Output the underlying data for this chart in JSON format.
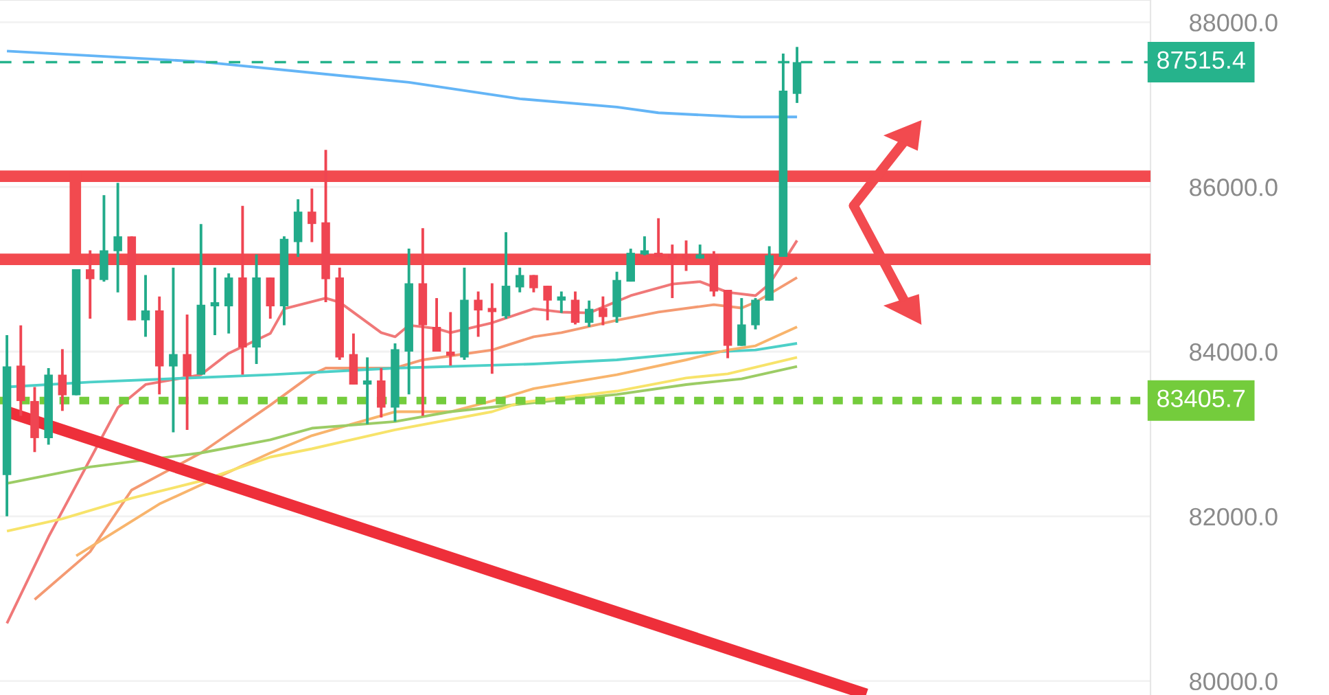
{
  "chart_data": {
    "type": "candlestick",
    "categories": [
      null,
      null,
      null,
      null,
      null,
      null,
      null,
      null,
      null,
      null,
      null,
      null,
      null,
      null,
      null,
      null,
      null,
      null,
      null,
      null,
      null,
      null,
      null,
      null,
      null,
      null,
      null,
      null,
      null,
      null,
      null,
      null,
      null,
      null,
      null,
      null,
      null,
      null,
      null,
      null,
      null,
      null,
      null,
      null,
      null,
      null,
      null,
      null,
      null,
      null,
      null,
      null,
      null,
      null,
      null,
      null,
      null,
      null,
      null,
      null,
      null,
      null,
      null,
      null,
      null,
      null,
      null,
      null,
      null,
      null,
      null,
      null,
      null,
      null,
      null,
      null,
      null,
      null,
      null,
      null,
      null,
      null,
      null
    ],
    "ohlc": [
      [
        82500,
        84200,
        82000,
        83820
      ],
      [
        83830,
        84320,
        83220,
        83400
      ],
      [
        83400,
        83570,
        82780,
        82950
      ],
      [
        82950,
        83800,
        82870,
        83720
      ],
      [
        83720,
        84030,
        83280,
        83470
      ],
      [
        83470,
        85000,
        83470,
        85000
      ],
      [
        85000,
        85230,
        84400,
        84880
      ],
      [
        84870,
        85900,
        84850,
        85230
      ],
      [
        85220,
        86050,
        84720,
        85400
      ],
      [
        85400,
        85400,
        84380,
        84380
      ],
      [
        84380,
        84930,
        84180,
        84500
      ],
      [
        84500,
        84670,
        83480,
        83820
      ],
      [
        83820,
        85020,
        83020,
        83970
      ],
      [
        83970,
        84450,
        83050,
        83700
      ],
      [
        83720,
        85550,
        83720,
        84570
      ],
      [
        84550,
        85020,
        84200,
        84600
      ],
      [
        84550,
        84950,
        84220,
        84900
      ],
      [
        84900,
        85770,
        83720,
        84050
      ],
      [
        84050,
        85180,
        83850,
        84900
      ],
      [
        84900,
        84900,
        84400,
        84550
      ],
      [
        84550,
        85400,
        84320,
        85370
      ],
      [
        85330,
        85850,
        85150,
        85700
      ],
      [
        85700,
        85980,
        85330,
        85550
      ],
      [
        85570,
        86450,
        84600,
        84880
      ],
      [
        84900,
        85020,
        83900,
        83930
      ],
      [
        83970,
        84220,
        83600,
        83600
      ],
      [
        83600,
        83930,
        83120,
        83650
      ],
      [
        83650,
        83800,
        83200,
        83320
      ],
      [
        83320,
        84100,
        83150,
        84030
      ],
      [
        84000,
        85250,
        83480,
        84830
      ],
      [
        84830,
        85500,
        83220,
        84320
      ],
      [
        84300,
        84650,
        84000,
        84000
      ],
      [
        84000,
        84480,
        83830,
        83950
      ],
      [
        83930,
        85020,
        83900,
        84630
      ],
      [
        84630,
        84730,
        84180,
        84500
      ],
      [
        84530,
        84830,
        83730,
        84480
      ],
      [
        84430,
        85450,
        84400,
        84800
      ],
      [
        84780,
        85020,
        84720,
        84930
      ],
      [
        84930,
        84930,
        84720,
        84770
      ],
      [
        84800,
        84800,
        84380,
        84620
      ],
      [
        84620,
        84730,
        84470,
        84670
      ],
      [
        84630,
        84730,
        84330,
        84350
      ],
      [
        84350,
        84620,
        84300,
        84520
      ],
      [
        84530,
        84670,
        84320,
        84420
      ],
      [
        84420,
        84970,
        84350,
        84870
      ],
      [
        84850,
        85250,
        84850,
        85200
      ],
      [
        85180,
        85400,
        85170,
        85230
      ],
      [
        85200,
        85620,
        85150,
        85150
      ],
      [
        85180,
        85300,
        84650,
        85130
      ],
      [
        85180,
        85350,
        84980,
        85130
      ],
      [
        85130,
        85300,
        85130,
        85180
      ],
      [
        85170,
        85220,
        84670,
        84730
      ],
      [
        84750,
        84750,
        83920,
        84070
      ],
      [
        84070,
        84650,
        84070,
        84330
      ],
      [
        84320,
        84650,
        84270,
        84630
      ],
      [
        84620,
        85280,
        84620,
        85170
      ],
      [
        85150,
        87620,
        85150,
        87170
      ],
      [
        87130,
        87700,
        87020,
        87515.4
      ],
      null,
      null,
      null,
      null,
      null,
      null,
      null,
      null,
      null,
      null,
      null,
      null,
      null,
      null,
      null,
      null,
      null,
      null,
      null,
      null,
      null,
      null,
      null,
      null,
      null
    ],
    "colors": [
      "#22ab8a",
      "#ef4552",
      "#ef4552",
      "#22ab8a",
      "#ef4552",
      "#22ab8a",
      "#ef4552",
      "#22ab8a",
      "#22ab8a",
      "#ef4552",
      "#22ab8a",
      "#ef4552",
      "#22ab8a",
      "#ef4552",
      "#22ab8a",
      "#22ab8a",
      "#22ab8a",
      "#ef4552",
      "#22ab8a",
      "#ef4552",
      "#22ab8a",
      "#22ab8a",
      "#ef4552",
      "#ef4552",
      "#ef4552",
      "#ef4552",
      "#22ab8a",
      "#ef4552",
      "#22ab8a",
      "#22ab8a",
      "#ef4552",
      "#ef4552",
      "#ef4552",
      "#22ab8a",
      "#ef4552",
      "#ef4552",
      "#22ab8a",
      "#22ab8a",
      "#ef4552",
      "#ef4552",
      "#22ab8a",
      "#ef4552",
      "#22ab8a",
      "#ef4552",
      "#22ab8a",
      "#22ab8a",
      "#22ab8a",
      "#ef4552",
      "#ef4552",
      "#ef4552",
      "#22ab8a",
      "#ef4552",
      "#ef4552",
      "#22ab8a",
      "#22ab8a",
      "#22ab8a",
      "#22ab8a",
      "#22ab8a",
      null,
      null,
      null,
      null,
      null,
      null,
      null,
      null,
      null,
      null,
      null,
      null,
      null,
      null,
      null,
      null,
      null,
      null,
      null,
      null,
      null,
      null,
      null,
      null,
      null
    ],
    "series": [
      {
        "type": "line",
        "color": "#64b5f6",
        "values": [
          87650,
          null,
          null,
          null,
          null,
          null,
          null,
          null,
          null,
          null,
          null,
          null,
          null,
          null,
          87520,
          null,
          null,
          null,
          null,
          null,
          null,
          null,
          null,
          null,
          null,
          null,
          null,
          null,
          null,
          87270,
          null,
          null,
          null,
          null,
          null,
          null,
          null,
          87070,
          null,
          null,
          null,
          null,
          null,
          null,
          86970,
          null,
          null,
          86900,
          null,
          null,
          null,
          null,
          null,
          86850,
          null,
          null,
          null,
          86850,
          null,
          null,
          null,
          null,
          null,
          null,
          null,
          null,
          null,
          null,
          null,
          null,
          null,
          null,
          null,
          null,
          null,
          null,
          null,
          null,
          null,
          null,
          null,
          null,
          null
        ]
      },
      {
        "type": "line",
        "color": "#f07878",
        "values": [
          80700,
          null,
          null,
          81750,
          null,
          null,
          null,
          null,
          83320,
          null,
          83600,
          null,
          null,
          null,
          83720,
          null,
          83980,
          null,
          null,
          84220,
          84520,
          null,
          null,
          84650,
          84600,
          null,
          null,
          84230,
          84180,
          84320,
          null,
          84280,
          84230,
          null,
          null,
          84350,
          null,
          null,
          84520,
          null,
          84480,
          null,
          84470,
          null,
          null,
          84680,
          null,
          null,
          84820,
          null,
          84850,
          null,
          84720,
          null,
          84680,
          84820,
          null,
          85350,
          null,
          null,
          null,
          null,
          null,
          null,
          null,
          null,
          null,
          null,
          null,
          null,
          null,
          null,
          null,
          null,
          null,
          null,
          null,
          null,
          null,
          null,
          null,
          null,
          null
        ]
      },
      {
        "type": "line",
        "color": "#f49a72",
        "values": [
          null,
          null,
          80990,
          null,
          null,
          null,
          81570,
          null,
          null,
          82320,
          null,
          null,
          null,
          null,
          82770,
          null,
          null,
          null,
          null,
          83350,
          null,
          null,
          83720,
          83800,
          null,
          null,
          null,
          null,
          83800,
          null,
          83900,
          null,
          null,
          null,
          null,
          84020,
          null,
          null,
          84180,
          null,
          84230,
          null,
          null,
          null,
          84380,
          null,
          null,
          84480,
          null,
          null,
          null,
          84570,
          null,
          84530,
          84600,
          null,
          null,
          84900,
          null,
          null,
          null,
          null,
          null,
          null,
          null,
          null,
          null,
          null,
          null,
          null,
          null,
          null,
          null,
          null,
          null,
          null,
          null,
          null,
          null,
          null,
          null,
          null,
          null
        ]
      },
      {
        "type": "line",
        "color": "#4dd0c8",
        "values": [
          83570,
          null,
          null,
          null,
          null,
          null,
          83630,
          null,
          null,
          null,
          null,
          null,
          null,
          null,
          null,
          null,
          null,
          null,
          null,
          83720,
          null,
          null,
          null,
          null,
          null,
          null,
          null,
          null,
          83800,
          null,
          null,
          null,
          null,
          null,
          null,
          null,
          null,
          null,
          83850,
          null,
          null,
          null,
          null,
          null,
          83900,
          null,
          null,
          null,
          null,
          83980,
          null,
          null,
          null,
          null,
          84020,
          null,
          null,
          84100,
          null,
          null,
          null,
          null,
          null,
          null,
          null,
          null,
          null,
          null,
          null,
          null,
          null,
          null,
          null,
          null,
          null,
          null,
          null,
          null,
          null,
          null,
          null,
          null,
          null
        ]
      },
      {
        "type": "line",
        "color": "#f8b46c",
        "values": [
          null,
          null,
          null,
          null,
          null,
          81520,
          null,
          null,
          null,
          null,
          null,
          82150,
          null,
          null,
          null,
          null,
          null,
          null,
          null,
          82770,
          null,
          null,
          82980,
          null,
          null,
          null,
          null,
          null,
          83270,
          null,
          null,
          null,
          83270,
          null,
          null,
          83400,
          null,
          null,
          83550,
          null,
          null,
          null,
          null,
          null,
          83720,
          null,
          null,
          null,
          null,
          83900,
          null,
          null,
          84020,
          null,
          84070,
          null,
          null,
          84300,
          null,
          null,
          null,
          null,
          null,
          null,
          null,
          null,
          null,
          null,
          null,
          null,
          null,
          null,
          null,
          null,
          null,
          null,
          null,
          null,
          null,
          null,
          null,
          null,
          null
        ]
      },
      {
        "type": "line",
        "color": "#9ccc65",
        "values": [
          82400,
          null,
          null,
          null,
          null,
          null,
          82600,
          null,
          null,
          null,
          null,
          null,
          null,
          null,
          82770,
          null,
          null,
          null,
          null,
          82930,
          null,
          null,
          83070,
          null,
          null,
          null,
          null,
          null,
          83150,
          null,
          null,
          null,
          83270,
          null,
          null,
          null,
          null,
          null,
          83380,
          null,
          null,
          null,
          null,
          null,
          83480,
          null,
          null,
          null,
          null,
          83600,
          null,
          null,
          null,
          83670,
          null,
          null,
          null,
          83820,
          null,
          null,
          null,
          null,
          null,
          null,
          null,
          null,
          null,
          null,
          null,
          null,
          null,
          null,
          null,
          null,
          null,
          null,
          null,
          null,
          null,
          null,
          null,
          null,
          null
        ]
      },
      {
        "type": "line",
        "color": "#f7e36a",
        "values": [
          81820,
          null,
          null,
          null,
          81970,
          null,
          null,
          null,
          null,
          82220,
          null,
          null,
          null,
          null,
          82430,
          null,
          null,
          null,
          null,
          82720,
          null,
          null,
          82820,
          null,
          null,
          null,
          null,
          null,
          83050,
          null,
          null,
          null,
          null,
          null,
          null,
          83270,
          null,
          83380,
          null,
          null,
          null,
          null,
          null,
          null,
          83520,
          null,
          null,
          null,
          null,
          83680,
          null,
          null,
          83730,
          null,
          null,
          null,
          null,
          83930,
          null,
          null,
          null,
          null,
          null,
          null,
          null,
          null,
          null,
          null,
          null,
          null,
          null,
          null,
          null,
          null,
          null,
          null,
          null,
          null,
          null,
          null,
          null,
          null,
          null
        ]
      },
      {
        "type": "line",
        "color": "#ee2f3a",
        "values": [
          83270,
          null,
          null,
          null,
          null,
          null,
          null,
          null,
          null,
          null,
          null,
          null,
          null,
          null,
          null,
          null,
          null,
          null,
          null,
          null,
          null,
          null,
          null,
          null,
          null,
          null,
          null,
          null,
          null,
          null,
          null,
          null,
          null,
          null,
          null,
          null,
          null,
          null,
          null,
          null,
          null,
          null,
          null,
          null,
          null,
          null,
          null,
          null,
          null,
          null,
          null,
          null,
          null,
          null,
          null,
          null,
          null,
          null,
          null,
          null,
          null,
          null,
          79840,
          null,
          null,
          null,
          null,
          null,
          null,
          null,
          null,
          null,
          null,
          null,
          null,
          null,
          null,
          null,
          null,
          null,
          null,
          null,
          null
        ]
      }
    ],
    "ref_lines": [
      {
        "axis": "y",
        "value": 87515.4,
        "label": "87515.4",
        "color": "#26b38c",
        "line_style": "dashed"
      },
      {
        "axis": "y",
        "value": 83405.7,
        "label": "83405.7",
        "color": "#74cc3c",
        "line_style": "dotted"
      },
      {
        "axis": "y",
        "value": 86130,
        "color": "#f24a4f",
        "line_style": "solid"
      },
      {
        "axis": "y",
        "value": 85120,
        "color": "#f24a4f",
        "line_style": "solid"
      }
    ],
    "ylim": [
      79830,
      88270
    ],
    "yticks": [
      {
        "value": 80000,
        "label": "80000.0"
      },
      {
        "value": 82000,
        "label": "82000.0"
      },
      {
        "value": 84000,
        "label": "84000.0"
      },
      {
        "value": 86000,
        "label": "86000.0"
      },
      {
        "value": 88000,
        "label": "88000.0"
      }
    ],
    "tick_labels": "y",
    "grid": "y"
  }
}
